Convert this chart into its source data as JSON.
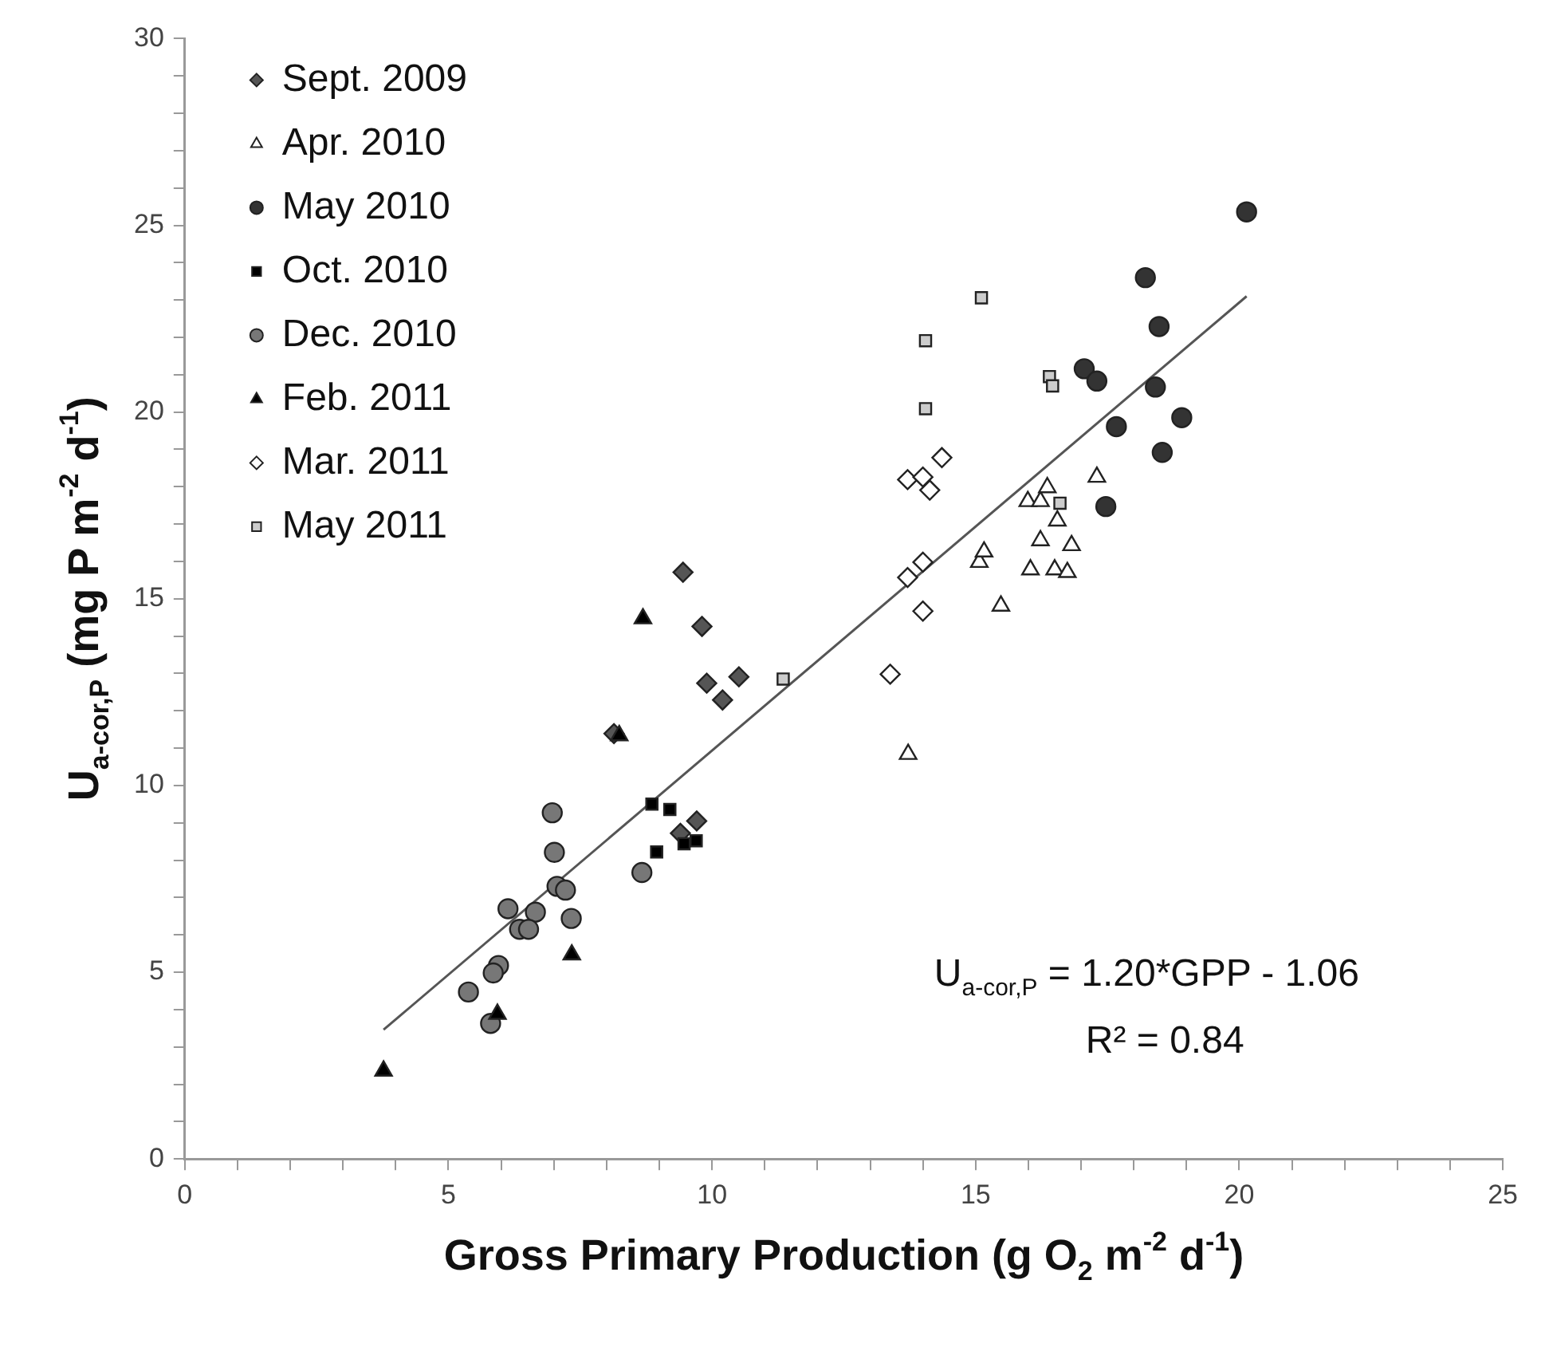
{
  "chart_data": {
    "type": "scatter",
    "xlabel": "Gross Primary Production (g O$_{2}$ m$^{-2}$ d$^{-1}$)",
    "ylabel": "U$_{a-cor,P}$ (mg P m$^{-2}$ d$^{-1}$)",
    "xlim": [
      0,
      25
    ],
    "xticks": [
      0,
      {
        "value": 1,
        "label": null
      },
      {
        "value": 2,
        "label": null
      },
      {
        "value": 3,
        "label": null
      },
      {
        "value": 4,
        "label": null
      },
      5,
      {
        "value": 6,
        "label": null
      },
      {
        "value": 7,
        "label": null
      },
      {
        "value": 8,
        "label": null
      },
      {
        "value": 9,
        "label": null
      },
      10,
      {
        "value": 11,
        "label": null
      },
      {
        "value": 12,
        "label": null
      },
      {
        "value": 13,
        "label": null
      },
      {
        "value": 14,
        "label": null
      },
      15,
      {
        "value": 16,
        "label": null
      },
      {
        "value": 17,
        "label": null
      },
      {
        "value": 18,
        "label": null
      },
      {
        "value": 19,
        "label": null
      },
      20,
      {
        "value": 21,
        "label": null
      },
      {
        "value": 22,
        "label": null
      },
      {
        "value": 23,
        "label": null
      },
      {
        "value": 24,
        "label": null
      },
      25
    ],
    "ylim": [
      0,
      30
    ],
    "yticks": [
      0,
      {
        "value": 1,
        "label": null
      },
      {
        "value": 2,
        "label": null
      },
      {
        "value": 3,
        "label": null
      },
      {
        "value": 4,
        "label": null
      },
      5,
      {
        "value": 6,
        "label": null
      },
      {
        "value": 7,
        "label": null
      },
      {
        "value": 8,
        "label": null
      },
      {
        "value": 9,
        "label": null
      },
      10,
      {
        "value": 11,
        "label": null
      },
      {
        "value": 12,
        "label": null
      },
      {
        "value": 13,
        "label": null
      },
      {
        "value": 14,
        "label": null
      },
      15,
      {
        "value": 16,
        "label": null
      },
      {
        "value": 17,
        "label": null
      },
      {
        "value": 18,
        "label": null
      },
      {
        "value": 19,
        "label": null
      },
      20,
      {
        "value": 21,
        "label": null
      },
      {
        "value": 22,
        "label": null
      },
      {
        "value": 23,
        "label": null
      },
      {
        "value": 24,
        "label": null
      },
      25,
      {
        "value": 26,
        "label": null
      },
      {
        "value": 27,
        "label": null
      },
      {
        "value": 28,
        "label": null
      },
      {
        "value": 29,
        "label": null
      },
      30
    ],
    "grid": false,
    "legend": "top left",
    "series": [
      {
        "name": "Sept. 2009",
        "color": "#555555",
        "marker": "diamond",
        "x": [
          9.45,
          9.81,
          9.9,
          10.51,
          10.2,
          8.14,
          9.71,
          9.4
        ],
        "values": [
          15.71,
          14.26,
          12.74,
          12.91,
          12.29,
          11.39,
          9.05,
          8.72
        ]
      },
      {
        "name": "Apr. 2010",
        "color": "#ffffff",
        "marker": "triangle",
        "x": [
          13.72,
          15.48,
          15.07,
          15.16,
          16.04,
          16.5,
          16.74,
          16.23,
          16.82,
          16.55,
          15.99,
          16.23,
          16.36,
          17.3
        ],
        "values": [
          10.84,
          14.81,
          15.98,
          16.26,
          15.78,
          15.78,
          15.71,
          16.56,
          16.43,
          17.09,
          17.61,
          17.61,
          17.98,
          18.26
        ]
      },
      {
        "name": "May 2010",
        "color": "#333333",
        "marker": "circle",
        "x": [
          20.14,
          18.22,
          18.48,
          17.06,
          17.3,
          18.41,
          17.67,
          18.91,
          18.54,
          17.47
        ],
        "values": [
          25.36,
          23.6,
          22.29,
          21.16,
          20.83,
          20.67,
          19.61,
          19.85,
          18.92,
          17.47
        ]
      },
      {
        "name": "Oct. 2010",
        "color": "#000000",
        "marker": "square",
        "x": [
          8.86,
          9.2,
          8.95,
          9.47,
          9.7
        ],
        "values": [
          9.5,
          9.36,
          8.22,
          8.44,
          8.52
        ]
      },
      {
        "name": "Dec. 2010",
        "color": "#777777",
        "marker": "circle",
        "x": [
          6.97,
          7.01,
          7.06,
          7.22,
          8.67,
          6.13,
          6.65,
          6.35,
          6.52,
          7.33,
          5.95,
          5.85,
          5.38,
          5.8
        ],
        "values": [
          9.27,
          8.21,
          7.3,
          7.2,
          7.67,
          6.7,
          6.61,
          6.15,
          6.15,
          6.44,
          5.18,
          4.98,
          4.47,
          3.63
        ]
      },
      {
        "name": "Feb. 2011",
        "color": "#000000",
        "marker": "triangle",
        "x": [
          8.69,
          8.24,
          7.34,
          5.93,
          3.77
        ],
        "values": [
          14.47,
          11.34,
          5.47,
          3.88,
          2.36
        ]
      },
      {
        "name": "Mar. 2011",
        "color": "#ffffff",
        "marker": "diamond",
        "x": [
          14.36,
          13.71,
          14.0,
          14.13,
          14.0,
          13.71,
          14.0,
          13.38
        ],
        "values": [
          18.78,
          18.19,
          18.26,
          17.91,
          15.98,
          15.57,
          14.67,
          12.98
        ]
      },
      {
        "name": "May 2011",
        "color": "#cccccc",
        "marker": "square",
        "x": [
          15.11,
          14.05,
          14.05,
          16.4,
          16.46,
          16.6,
          11.35
        ],
        "values": [
          23.06,
          21.91,
          20.09,
          20.95,
          20.7,
          17.56,
          12.85
        ]
      },
      {
        "type": "line",
        "color": "#555555",
        "marker": "none",
        "x": [
          3.77,
          20.14
        ],
        "values": [
          3.46,
          23.1
        ]
      }
    ],
    "annotations": [
      "U$_{a-cor,P}$ = 1.20*GPP - 1.06",
      "R² = 0.84"
    ]
  }
}
